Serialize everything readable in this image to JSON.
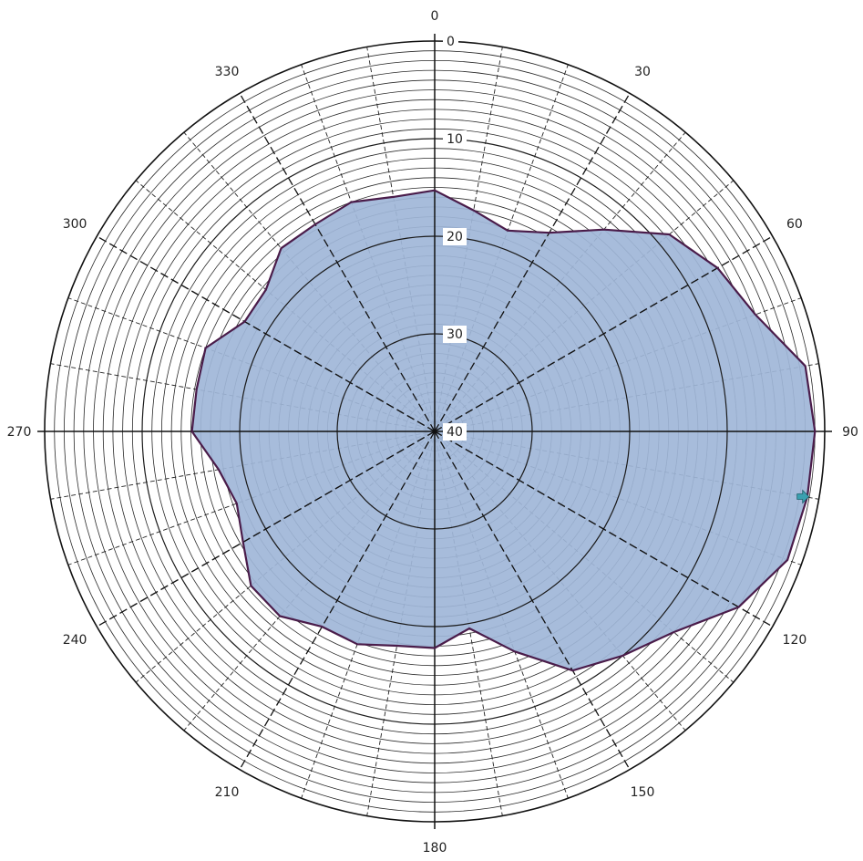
{
  "chart_data": {
    "type": "polar-area",
    "angle_unit": "degrees",
    "angle_direction": "clockwise",
    "zero_at": "top",
    "radial_axis": {
      "min": 0,
      "max": 40,
      "inverted": true,
      "tick_values": [
        0,
        10,
        20,
        30,
        40
      ],
      "tick_labels": [
        "0",
        "10",
        "20",
        "30",
        "40"
      ],
      "minor_step": 1
    },
    "angle_axis": {
      "tick_values": [
        0,
        30,
        60,
        90,
        120,
        150,
        180,
        210,
        240,
        270,
        300,
        330
      ],
      "tick_labels": [
        "0",
        "30",
        "60",
        "90",
        "120",
        "150",
        "180",
        "210",
        "240",
        "270",
        "300",
        "330"
      ],
      "minor_spoke_step": 10
    },
    "series": [
      {
        "fill_color": "#9fb6d8",
        "line_color": "#4a1c4a",
        "points": [
          {
            "angle": 0,
            "value": 15.3
          },
          {
            "angle": 10,
            "value": 17.0
          },
          {
            "angle": 20,
            "value": 18.1
          },
          {
            "angle": 30,
            "value": 16.5
          },
          {
            "angle": 40,
            "value": 13.0
          },
          {
            "angle": 50,
            "value": 8.6
          },
          {
            "angle": 60,
            "value": 6.5
          },
          {
            "angle": 70,
            "value": 5.0
          },
          {
            "angle": 80,
            "value": 1.4
          },
          {
            "angle": 90,
            "value": 1.0
          },
          {
            "angle": 100,
            "value": 1.2
          },
          {
            "angle": 110,
            "value": 1.5
          },
          {
            "angle": 120,
            "value": 4.0
          },
          {
            "angle": 130,
            "value": 8.0
          },
          {
            "angle": 140,
            "value": 10.0
          },
          {
            "angle": 150,
            "value": 11.7
          },
          {
            "angle": 160,
            "value": 16.0
          },
          {
            "angle": 170,
            "value": 19.5
          },
          {
            "angle": 180,
            "value": 17.8
          },
          {
            "angle": 190,
            "value": 17.7
          },
          {
            "angle": 200,
            "value": 16.8
          },
          {
            "angle": 210,
            "value": 16.9
          },
          {
            "angle": 220,
            "value": 15.3
          },
          {
            "angle": 230,
            "value": 15.4
          },
          {
            "angle": 240,
            "value": 17.3
          },
          {
            "angle": 250,
            "value": 18.4
          },
          {
            "angle": 260,
            "value": 17.5
          },
          {
            "angle": 270,
            "value": 15.1
          },
          {
            "angle": 280,
            "value": 15.2
          },
          {
            "angle": 290,
            "value": 15.0
          },
          {
            "angle": 300,
            "value": 17.5
          },
          {
            "angle": 310,
            "value": 17.4
          },
          {
            "angle": 320,
            "value": 15.5
          },
          {
            "angle": 330,
            "value": 15.5
          },
          {
            "angle": 340,
            "value": 15.0
          },
          {
            "angle": 350,
            "value": 15.6
          }
        ]
      }
    ],
    "marker": {
      "angle": 100,
      "value": 1.5,
      "color": "#3aa0b0"
    }
  }
}
